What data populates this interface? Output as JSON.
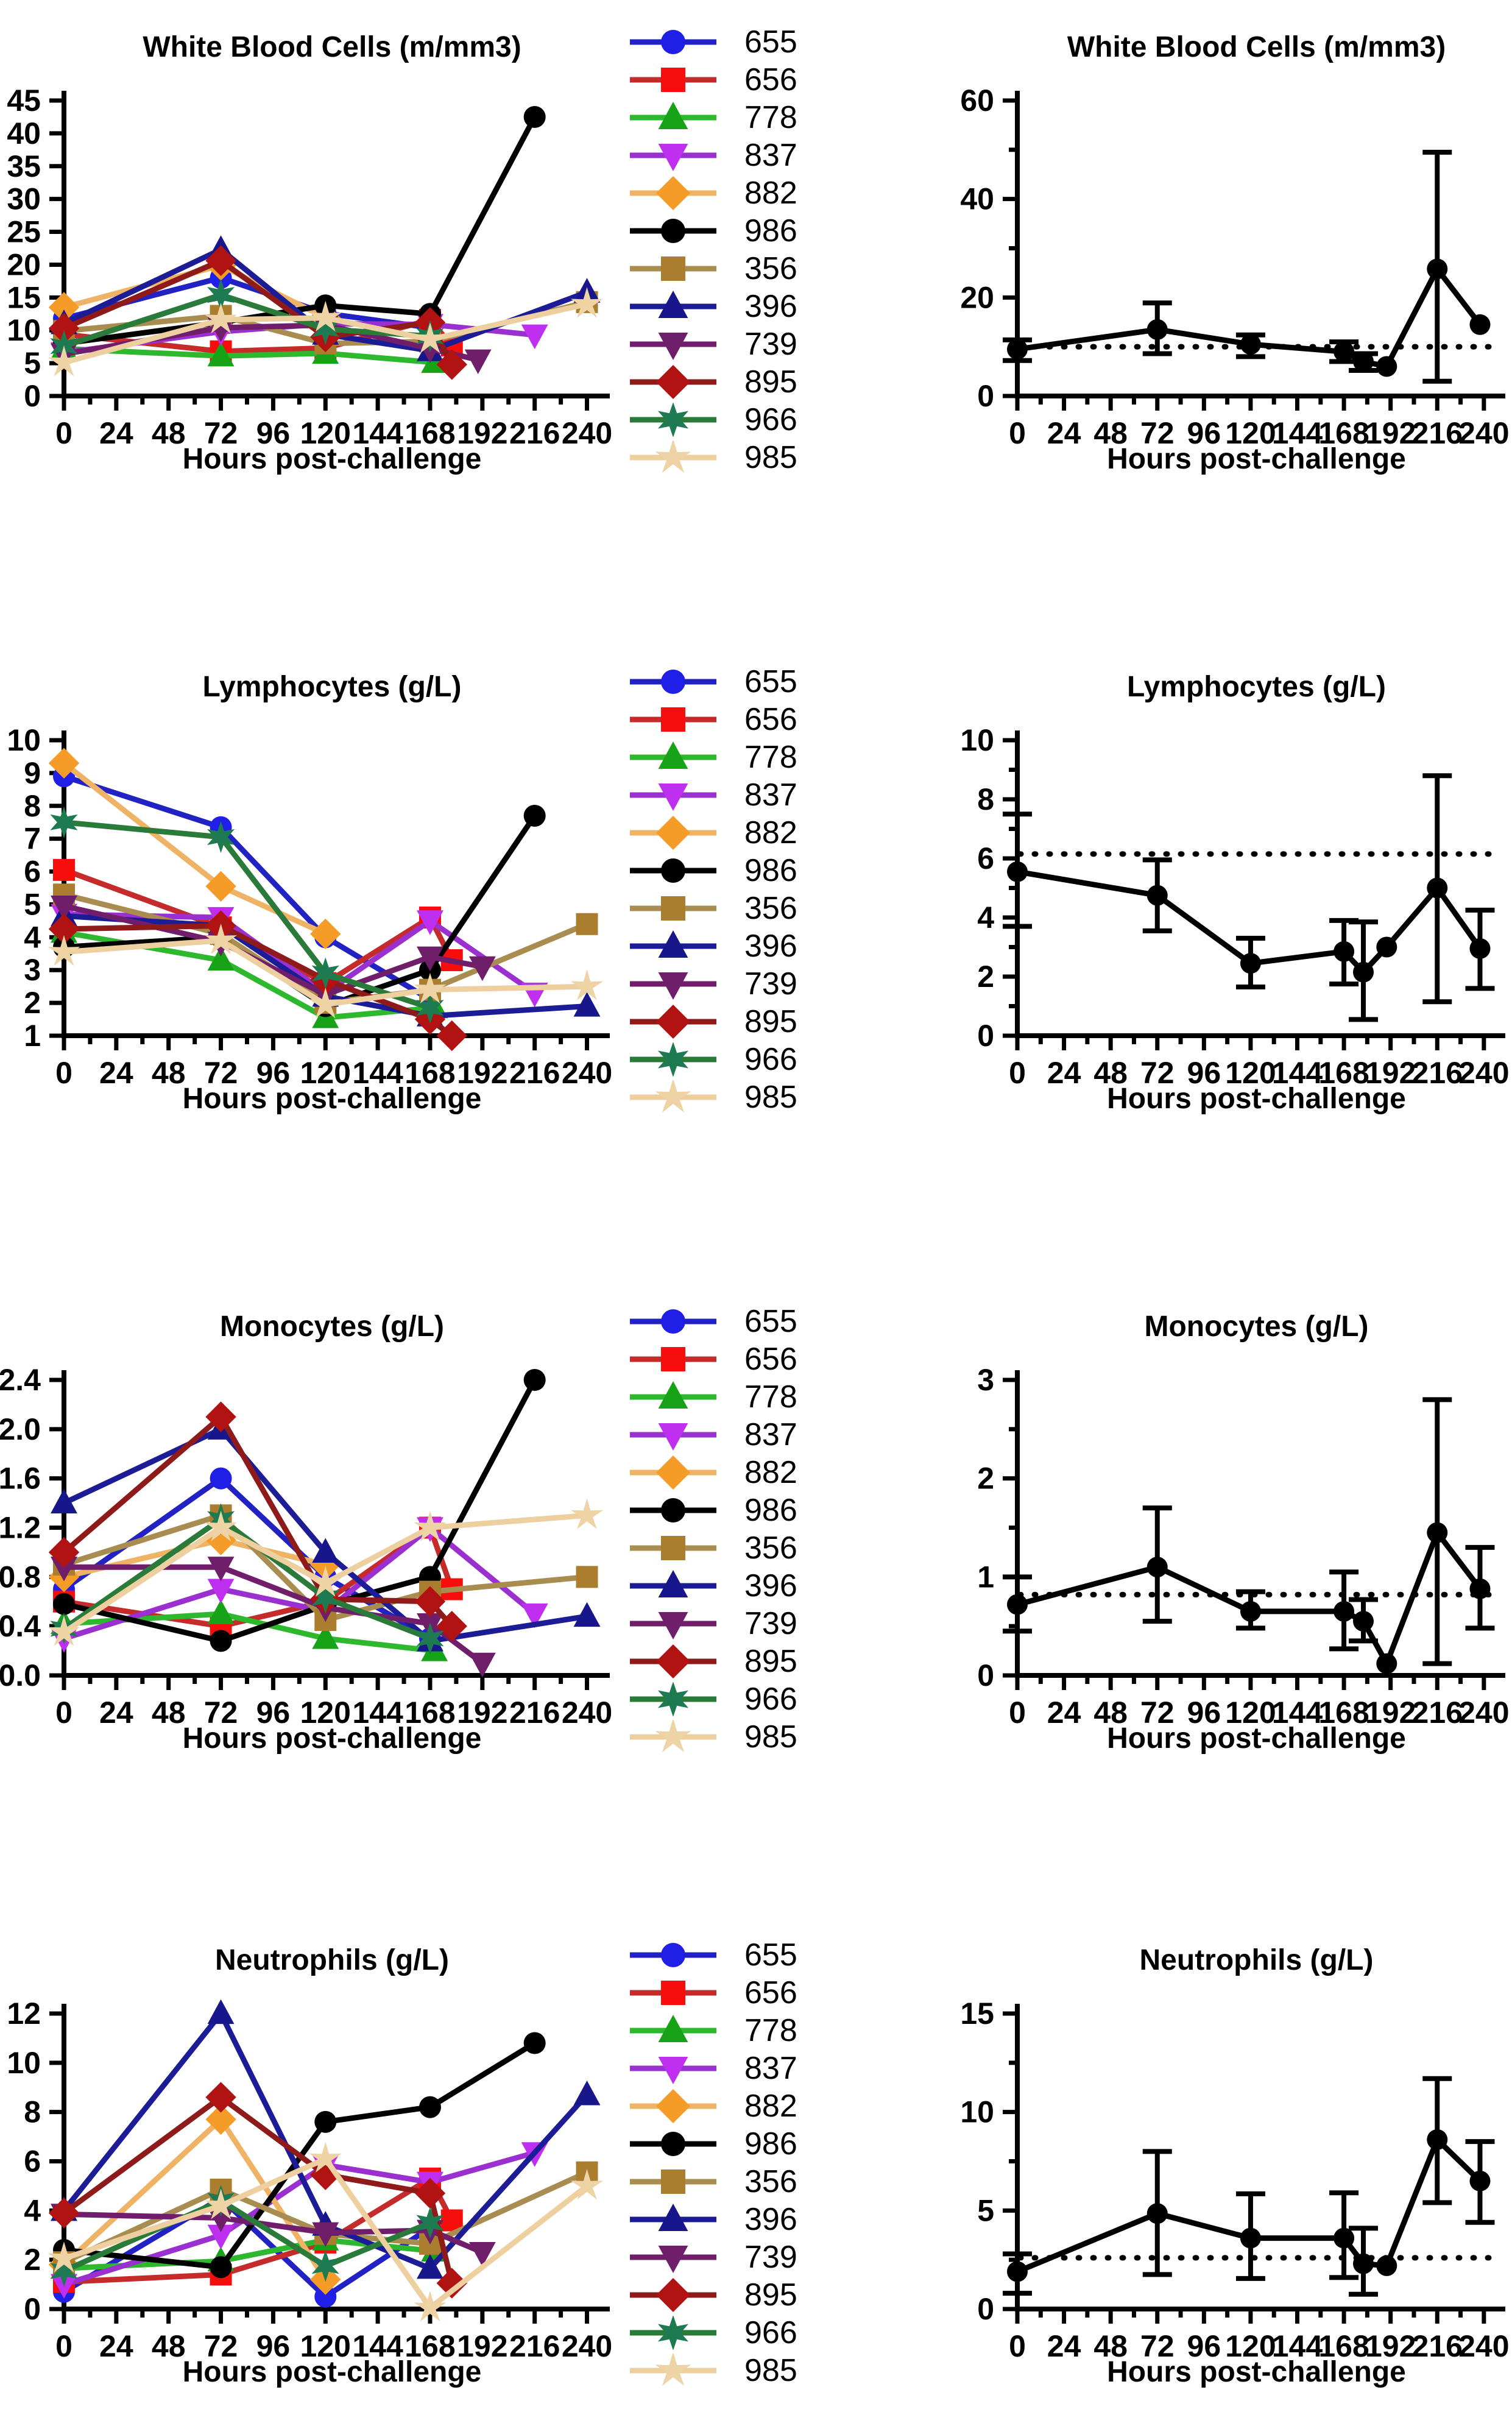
{
  "figure": {
    "background": "#ffffff",
    "x_ticks": [
      0,
      24,
      48,
      72,
      96,
      120,
      144,
      168,
      192,
      216,
      240
    ],
    "x_max": 246
  },
  "legend": {
    "entries": [
      {
        "id": "655",
        "marker": "circle",
        "color": "#1f1fe8",
        "line": "#2222c4"
      },
      {
        "id": "656",
        "marker": "square",
        "color": "#f80d0d",
        "line": "#c52b2b"
      },
      {
        "id": "778",
        "marker": "triangle-up",
        "color": "#17a317",
        "line": "#2eb82e"
      },
      {
        "id": "837",
        "marker": "triangle-down",
        "color": "#bf2ff0",
        "line": "#9b30d0"
      },
      {
        "id": "882",
        "marker": "diamond",
        "color": "#f59c28",
        "line": "#efb366"
      },
      {
        "id": "986",
        "marker": "circle",
        "color": "#000000",
        "line": "#000000"
      },
      {
        "id": "356",
        "marker": "square",
        "color": "#ab7d2e",
        "line": "#a98d50"
      },
      {
        "id": "396",
        "marker": "triangle-up",
        "color": "#17168a",
        "line": "#1c1c96"
      },
      {
        "id": "739",
        "marker": "triangle-down",
        "color": "#6f1e69",
        "line": "#701d6b"
      },
      {
        "id": "895",
        "marker": "diamond",
        "color": "#b11212",
        "line": "#8f1a1a"
      },
      {
        "id": "966",
        "marker": "star6",
        "color": "#1e7a50",
        "line": "#2a7a3a"
      },
      {
        "id": "985",
        "marker": "star5",
        "color": "#eed3a4",
        "line": "#eecfa0"
      }
    ]
  },
  "chart_data": [
    {
      "type": "line",
      "panel": "individual",
      "title": "White Blood Cells (m/mm3)",
      "xlabel": "Hours post-challenge",
      "ylim": [
        0,
        45
      ],
      "yticks": [
        "0",
        "5",
        "10",
        "15",
        "20",
        "25",
        "30",
        "35",
        "40",
        "45"
      ],
      "series": [
        {
          "id": "655",
          "x": [
            0,
            72,
            120,
            168
          ],
          "y": [
            11.8,
            18.0,
            12.6,
            10.4
          ]
        },
        {
          "id": "656",
          "x": [
            0,
            72,
            120,
            168,
            178
          ],
          "y": [
            9.4,
            6.8,
            7.3,
            11.6,
            7.7
          ]
        },
        {
          "id": "778",
          "x": [
            0,
            72,
            120,
            170
          ],
          "y": [
            7.2,
            6.1,
            6.5,
            5.1
          ]
        },
        {
          "id": "837",
          "x": [
            0,
            72,
            120,
            168,
            216
          ],
          "y": [
            6.6,
            9.8,
            11.0,
            10.9,
            9.3
          ]
        },
        {
          "id": "882",
          "x": [
            0,
            72,
            120
          ],
          "y": [
            13.5,
            19.9,
            11.9
          ]
        },
        {
          "id": "986",
          "x": [
            0,
            72,
            120,
            168,
            216
          ],
          "y": [
            8.0,
            11.2,
            13.8,
            12.5,
            42.5
          ]
        },
        {
          "id": "356",
          "x": [
            0,
            72,
            120,
            168,
            240
          ],
          "y": [
            9.9,
            12.2,
            8.0,
            8.3,
            14.3
          ]
        },
        {
          "id": "396",
          "x": [
            0,
            72,
            120,
            168,
            240
          ],
          "y": [
            11.0,
            22.3,
            9.4,
            6.9,
            15.8
          ]
        },
        {
          "id": "739",
          "x": [
            0,
            72,
            120,
            168,
            190
          ],
          "y": [
            6.4,
            10.4,
            10.8,
            7.2,
            5.5
          ]
        },
        {
          "id": "895",
          "x": [
            0,
            72,
            120,
            168,
            178
          ],
          "y": [
            10.3,
            20.6,
            9.0,
            11.2,
            4.8
          ]
        },
        {
          "id": "966",
          "x": [
            0,
            72,
            120,
            168
          ],
          "y": [
            7.6,
            15.4,
            10.2,
            9.1
          ]
        },
        {
          "id": "985",
          "x": [
            0,
            72,
            120,
            168,
            240
          ],
          "y": [
            5.1,
            11.6,
            11.9,
            8.6,
            14.0
          ]
        }
      ]
    },
    {
      "type": "line",
      "panel": "mean",
      "title": "White Blood Cells (m/mm3)",
      "xlabel": "Hours post-challenge",
      "ylim": [
        0,
        60
      ],
      "yticks": [
        "0",
        "20",
        "40",
        "60"
      ],
      "yticks_minor": [
        10,
        30,
        50
      ],
      "baseline": 10,
      "x": [
        0,
        72,
        120,
        168,
        178,
        190,
        216,
        238
      ],
      "mean": [
        9.5,
        13.5,
        10.5,
        9.0,
        7.0,
        6.0,
        25.8,
        14.5
      ],
      "err_low": [
        7.2,
        8.6,
        8.0,
        7.0,
        5.2,
        6.0,
        3.0,
        14.5
      ],
      "err_high": [
        11.4,
        18.9,
        12.4,
        11.0,
        8.6,
        6.0,
        49.5,
        14.5
      ]
    },
    {
      "type": "line",
      "panel": "individual",
      "title": "Lymphocytes (g/L)",
      "xlabel": "Hours post-challenge",
      "ylim": [
        1,
        10
      ],
      "yticks": [
        "1",
        "2",
        "3",
        "4",
        "5",
        "6",
        "7",
        "8",
        "9",
        "10"
      ],
      "series": [
        {
          "id": "655",
          "x": [
            0,
            72,
            120,
            168
          ],
          "y": [
            8.9,
            7.35,
            4.0,
            2.1
          ]
        },
        {
          "id": "656",
          "x": [
            0,
            72,
            120,
            168,
            178
          ],
          "y": [
            6.05,
            4.3,
            2.6,
            4.6,
            3.3
          ]
        },
        {
          "id": "778",
          "x": [
            0,
            72,
            120,
            170
          ],
          "y": [
            4.15,
            3.3,
            1.55,
            1.85
          ]
        },
        {
          "id": "837",
          "x": [
            0,
            72,
            120,
            168,
            216
          ],
          "y": [
            4.7,
            4.6,
            2.3,
            4.5,
            2.3
          ]
        },
        {
          "id": "882",
          "x": [
            0,
            72,
            120
          ],
          "y": [
            9.3,
            5.55,
            4.1
          ]
        },
        {
          "id": "986",
          "x": [
            0,
            72,
            120,
            168,
            216
          ],
          "y": [
            3.7,
            4.0,
            1.9,
            3.0,
            7.7
          ]
        },
        {
          "id": "356",
          "x": [
            0,
            72,
            120,
            168,
            240
          ],
          "y": [
            5.3,
            4.1,
            2.0,
            2.4,
            4.4
          ]
        },
        {
          "id": "396",
          "x": [
            0,
            72,
            120,
            168,
            240
          ],
          "y": [
            4.65,
            4.35,
            2.2,
            1.6,
            1.9
          ]
        },
        {
          "id": "739",
          "x": [
            0,
            72,
            120,
            168,
            192
          ],
          "y": [
            4.95,
            3.85,
            2.25,
            3.4,
            3.1
          ]
        },
        {
          "id": "895",
          "x": [
            0,
            72,
            120,
            168,
            178
          ],
          "y": [
            4.25,
            4.35,
            2.7,
            1.5,
            1.0
          ]
        },
        {
          "id": "966",
          "x": [
            0,
            72,
            120,
            168
          ],
          "y": [
            7.5,
            7.05,
            2.9,
            1.85
          ]
        },
        {
          "id": "985",
          "x": [
            0,
            72,
            120,
            168,
            240
          ],
          "y": [
            3.55,
            3.9,
            1.95,
            2.4,
            2.5
          ]
        }
      ]
    },
    {
      "type": "line",
      "panel": "mean",
      "title": "Lymphocytes (g/L)",
      "xlabel": "Hours post-challenge",
      "ylim": [
        0,
        10
      ],
      "yticks": [
        "0",
        "2",
        "4",
        "6",
        "8",
        "10"
      ],
      "yticks_minor": [
        1,
        3,
        5,
        7,
        9
      ],
      "baseline": 6.15,
      "x": [
        0,
        72,
        120,
        168,
        178,
        190,
        216,
        238
      ],
      "mean": [
        5.55,
        4.75,
        2.45,
        2.85,
        2.15,
        3.0,
        5.0,
        2.95
      ],
      "err_low": [
        3.7,
        3.55,
        1.65,
        1.75,
        0.55,
        3.0,
        1.15,
        1.6
      ],
      "err_high": [
        7.5,
        5.95,
        3.3,
        3.9,
        3.85,
        3.0,
        8.8,
        4.25
      ]
    },
    {
      "type": "line",
      "panel": "individual",
      "title": "Monocytes (g/L)",
      "xlabel": "Hours post-challenge",
      "ylim": [
        0,
        2.4
      ],
      "yticks": [
        "0.0",
        "0.4",
        "0.8",
        "1.2",
        "1.6",
        "2.0",
        "2.4"
      ],
      "series": [
        {
          "id": "655",
          "x": [
            0,
            72,
            120,
            168
          ],
          "y": [
            0.7,
            1.6,
            0.8,
            0.3
          ]
        },
        {
          "id": "656",
          "x": [
            0,
            72,
            120,
            168,
            178
          ],
          "y": [
            0.6,
            0.4,
            0.6,
            1.2,
            0.7
          ]
        },
        {
          "id": "778",
          "x": [
            0,
            72,
            120,
            170
          ],
          "y": [
            0.42,
            0.5,
            0.3,
            0.2
          ]
        },
        {
          "id": "837",
          "x": [
            0,
            72,
            120,
            168,
            216
          ],
          "y": [
            0.3,
            0.7,
            0.52,
            1.2,
            0.5
          ]
        },
        {
          "id": "882",
          "x": [
            0,
            72,
            120
          ],
          "y": [
            0.8,
            1.1,
            0.9
          ]
        },
        {
          "id": "986",
          "x": [
            0,
            72,
            120,
            168,
            216
          ],
          "y": [
            0.58,
            0.28,
            0.57,
            0.8,
            2.4
          ]
        },
        {
          "id": "356",
          "x": [
            0,
            72,
            120,
            168,
            240
          ],
          "y": [
            0.9,
            1.3,
            0.45,
            0.68,
            0.8
          ]
        },
        {
          "id": "396",
          "x": [
            0,
            72,
            120,
            168,
            240
          ],
          "y": [
            1.4,
            2.0,
            1.0,
            0.28,
            0.48
          ]
        },
        {
          "id": "739",
          "x": [
            0,
            72,
            120,
            168,
            192
          ],
          "y": [
            0.88,
            0.88,
            0.55,
            0.42,
            0.1
          ]
        },
        {
          "id": "895",
          "x": [
            0,
            72,
            120,
            168,
            178
          ],
          "y": [
            1.0,
            2.1,
            0.62,
            0.6,
            0.4
          ]
        },
        {
          "id": "966",
          "x": [
            0,
            72,
            120,
            168
          ],
          "y": [
            0.38,
            1.27,
            0.63,
            0.3
          ]
        },
        {
          "id": "985",
          "x": [
            0,
            72,
            120,
            168,
            240
          ],
          "y": [
            0.35,
            1.2,
            0.75,
            1.2,
            1.3
          ]
        }
      ]
    },
    {
      "type": "line",
      "panel": "mean",
      "title": "Monocytes (g/L)",
      "xlabel": "Hours post-challenge",
      "ylim": [
        0,
        3
      ],
      "yticks": [
        "0",
        "1",
        "2",
        "3"
      ],
      "yticks_minor": [
        0.5,
        1.5,
        2.5
      ],
      "baseline": 0.82,
      "x": [
        0,
        72,
        120,
        168,
        178,
        190,
        216,
        238
      ],
      "mean": [
        0.72,
        1.1,
        0.65,
        0.65,
        0.55,
        0.12,
        1.45,
        0.88
      ],
      "err_low": [
        0.45,
        0.55,
        0.48,
        0.27,
        0.35,
        0.12,
        0.12,
        0.48
      ],
      "err_high": [
        1.0,
        1.7,
        0.85,
        1.05,
        0.77,
        0.12,
        2.8,
        1.3
      ]
    },
    {
      "type": "line",
      "panel": "individual",
      "title": "Neutrophils (g/L)",
      "xlabel": "Hours post-challenge",
      "ylim": [
        0,
        12
      ],
      "yticks": [
        "0",
        "2",
        "4",
        "6",
        "8",
        "10",
        "12"
      ],
      "series": [
        {
          "id": "655",
          "x": [
            0,
            72,
            120,
            168
          ],
          "y": [
            0.7,
            4.5,
            0.5,
            3.3
          ]
        },
        {
          "id": "656",
          "x": [
            0,
            72,
            120,
            168,
            178
          ],
          "y": [
            1.1,
            1.4,
            2.7,
            5.3,
            3.6
          ]
        },
        {
          "id": "778",
          "x": [
            0,
            72,
            120,
            170
          ],
          "y": [
            1.65,
            1.95,
            2.8,
            2.35
          ]
        },
        {
          "id": "837",
          "x": [
            0,
            72,
            120,
            168,
            216
          ],
          "y": [
            1.0,
            3.0,
            5.85,
            5.15,
            6.35
          ]
        },
        {
          "id": "882",
          "x": [
            0,
            72,
            120
          ],
          "y": [
            1.8,
            7.7,
            1.2
          ]
        },
        {
          "id": "986",
          "x": [
            0,
            72,
            120,
            168,
            216
          ],
          "y": [
            2.4,
            1.7,
            7.6,
            8.2,
            10.8
          ]
        },
        {
          "id": "356",
          "x": [
            0,
            72,
            120,
            168,
            240
          ],
          "y": [
            1.9,
            4.85,
            3.05,
            2.65,
            5.55
          ]
        },
        {
          "id": "396",
          "x": [
            0,
            72,
            120,
            168,
            240
          ],
          "y": [
            4.0,
            12.0,
            3.4,
            1.65,
            8.7
          ]
        },
        {
          "id": "739",
          "x": [
            0,
            72,
            120,
            168,
            192
          ],
          "y": [
            3.85,
            3.7,
            3.1,
            3.2,
            2.3
          ]
        },
        {
          "id": "895",
          "x": [
            0,
            72,
            120,
            168,
            178
          ],
          "y": [
            3.9,
            8.6,
            5.45,
            4.7,
            1.05
          ]
        },
        {
          "id": "966",
          "x": [
            0,
            72,
            120,
            168
          ],
          "y": [
            1.55,
            4.4,
            1.75,
            3.5
          ]
        },
        {
          "id": "985",
          "x": [
            0,
            72,
            120,
            168,
            240
          ],
          "y": [
            2.05,
            4.2,
            6.1,
            0.05,
            5.0
          ]
        }
      ]
    },
    {
      "type": "line",
      "panel": "mean",
      "title": "Neutrophils (g/L)",
      "xlabel": "Hours post-challenge",
      "ylim": [
        0,
        15
      ],
      "yticks": [
        "0",
        "5",
        "10",
        "15"
      ],
      "yticks_minor": [
        2.5,
        7.5,
        12.5
      ],
      "baseline": 2.6,
      "x": [
        0,
        72,
        120,
        168,
        178,
        190,
        216,
        238
      ],
      "mean": [
        1.9,
        4.85,
        3.6,
        3.6,
        2.3,
        2.2,
        8.6,
        6.5
      ],
      "err_low": [
        0.8,
        1.75,
        1.55,
        1.6,
        0.75,
        2.2,
        5.4,
        4.4
      ],
      "err_high": [
        2.8,
        8.0,
        5.85,
        5.9,
        4.1,
        2.2,
        11.7,
        8.5
      ]
    }
  ]
}
